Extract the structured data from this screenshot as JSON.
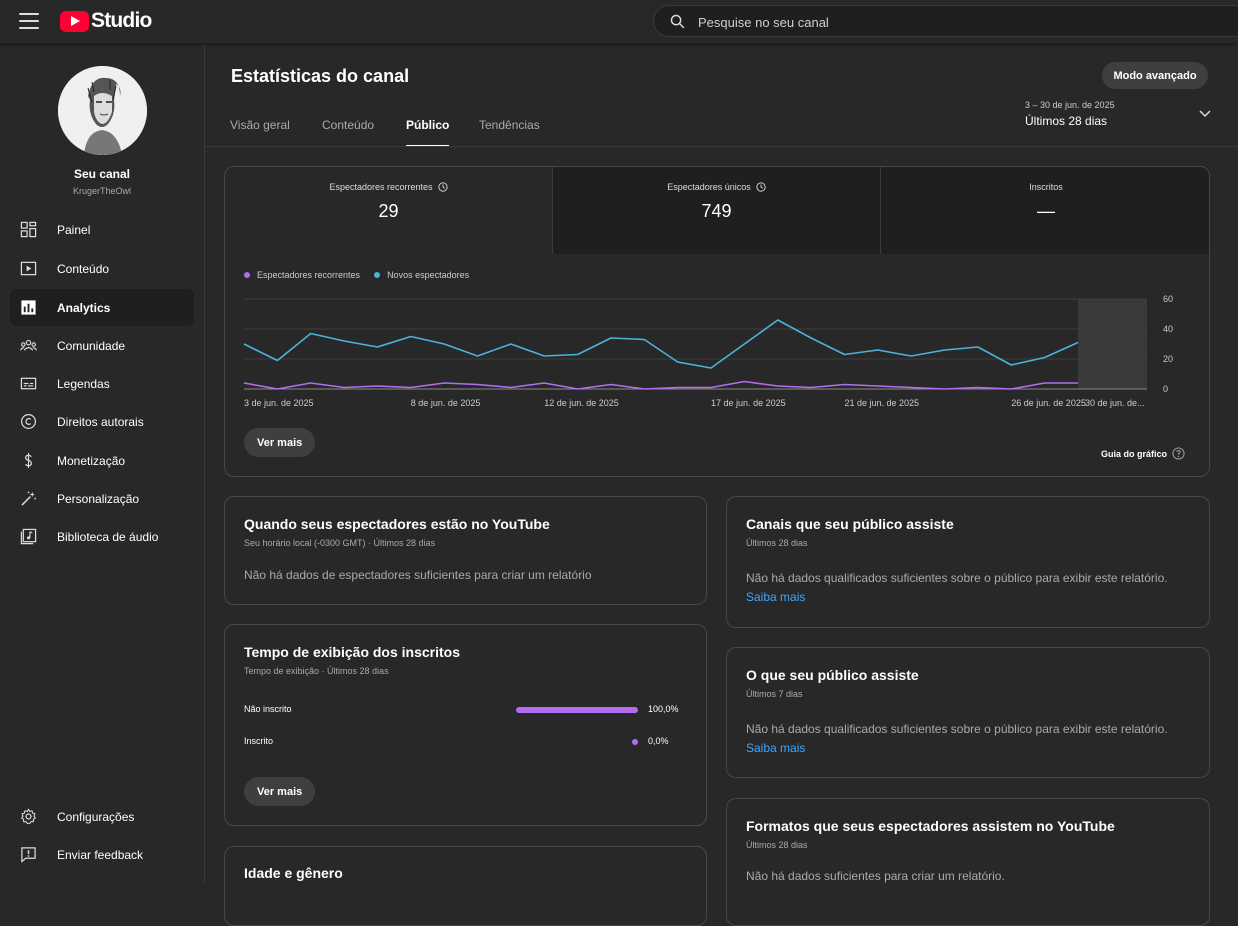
{
  "app": {
    "logo_text": "Studio"
  },
  "search": {
    "placeholder": "Pesquise no seu canal"
  },
  "channel": {
    "name": "Seu canal",
    "handle": "KrugerTheOwl"
  },
  "sidebar": {
    "items": [
      {
        "label": "Painel",
        "icon": "dashboard-icon"
      },
      {
        "label": "Conteúdo",
        "icon": "content-icon"
      },
      {
        "label": "Analytics",
        "icon": "analytics-icon",
        "active": true
      },
      {
        "label": "Comunidade",
        "icon": "community-icon"
      },
      {
        "label": "Legendas",
        "icon": "subtitles-icon"
      },
      {
        "label": "Direitos autorais",
        "icon": "copyright-icon"
      },
      {
        "label": "Monetização",
        "icon": "dollar-icon"
      },
      {
        "label": "Personalização",
        "icon": "magic-wand-icon"
      },
      {
        "label": "Biblioteca de áudio",
        "icon": "audio-library-icon"
      }
    ],
    "bottom": [
      {
        "label": "Configurações",
        "icon": "gear-icon"
      },
      {
        "label": "Enviar feedback",
        "icon": "feedback-icon"
      }
    ]
  },
  "header": {
    "title": "Estatísticas do canal",
    "advanced_button": "Modo avançado",
    "tabs": [
      {
        "label": "Visão geral"
      },
      {
        "label": "Conteúdo"
      },
      {
        "label": "Público",
        "active": true
      },
      {
        "label": "Tendências"
      }
    ],
    "date_range": {
      "dates": "3 – 30 de jun. de 2025",
      "label": "Últimos 28 dias"
    }
  },
  "metrics": [
    {
      "label": "Espectadores recorrentes",
      "value": "29"
    },
    {
      "label": "Espectadores únicos",
      "value": "749"
    },
    {
      "label": "Inscritos",
      "value": "—"
    }
  ],
  "colors": {
    "returning": "#b46cf0",
    "new": "#4bb3db",
    "link": "#3ea6ff"
  },
  "chart_data": {
    "type": "line",
    "series": [
      {
        "name": "Espectadores recorrentes",
        "color": "#b46cf0",
        "values": [
          4,
          0,
          4,
          1,
          2,
          1,
          4,
          3,
          1,
          4,
          0,
          3,
          0,
          1,
          1,
          5,
          2,
          1,
          3,
          2,
          1,
          0,
          1,
          0,
          4,
          4
        ]
      },
      {
        "name": "Novos espectadores",
        "color": "#4bb3db",
        "values": [
          30,
          19,
          37,
          32,
          28,
          35,
          30,
          22,
          30,
          22,
          23,
          34,
          33,
          18,
          14,
          30,
          46,
          34,
          23,
          26,
          22,
          26,
          28,
          16,
          21,
          31
        ]
      }
    ],
    "x_ticks": [
      "3 de jun. de 2025",
      "8 de jun. de 2025",
      "12 de jun. de 2025",
      "17 de jun. de 2025",
      "21 de jun. de 2025",
      "26 de jun. de 2025",
      "30 de jun. de..."
    ],
    "y_ticks": [
      "60",
      "40",
      "20",
      "0"
    ],
    "ylim": [
      0,
      60
    ],
    "grid": true,
    "legend_position": "top-left"
  },
  "metrics_card": {
    "see_more": "Ver mais",
    "chart_guide": "Guia do gráfico"
  },
  "when_on_youtube": {
    "title": "Quando seus espectadores estão no YouTube",
    "subtitle": "Seu horário local (-0300 GMT) · Últimos 28 dias",
    "message": "Não há dados de espectadores suficientes para criar um relatório"
  },
  "watch_time_subs": {
    "title": "Tempo de exibição dos inscritos",
    "subtitle": "Tempo de exibição · Últimos 28 dias",
    "rows": [
      {
        "label": "Não inscrito",
        "percent": 100.0,
        "display": "100,0%"
      },
      {
        "label": "Inscrito",
        "percent": 0.0,
        "display": "0,0%"
      }
    ],
    "see_more": "Ver mais"
  },
  "age_gender": {
    "title": "Idade e gênero"
  },
  "channels_watched": {
    "title": "Canais que seu público assiste",
    "subtitle": "Últimos 28 dias",
    "message": "Não há dados qualificados suficientes sobre o público para exibir este relatório.",
    "link": "Saiba mais"
  },
  "what_audience_watches": {
    "title": "O que seu público assiste",
    "subtitle": "Últimos 7 dias",
    "message": "Não há dados qualificados suficientes sobre o público para exibir este relatório.",
    "link": "Saiba mais"
  },
  "formats": {
    "title": "Formatos que seus espectadores assistem no YouTube",
    "subtitle": "Últimos 28 dias",
    "message": "Não há dados suficientes para criar um relatório."
  }
}
